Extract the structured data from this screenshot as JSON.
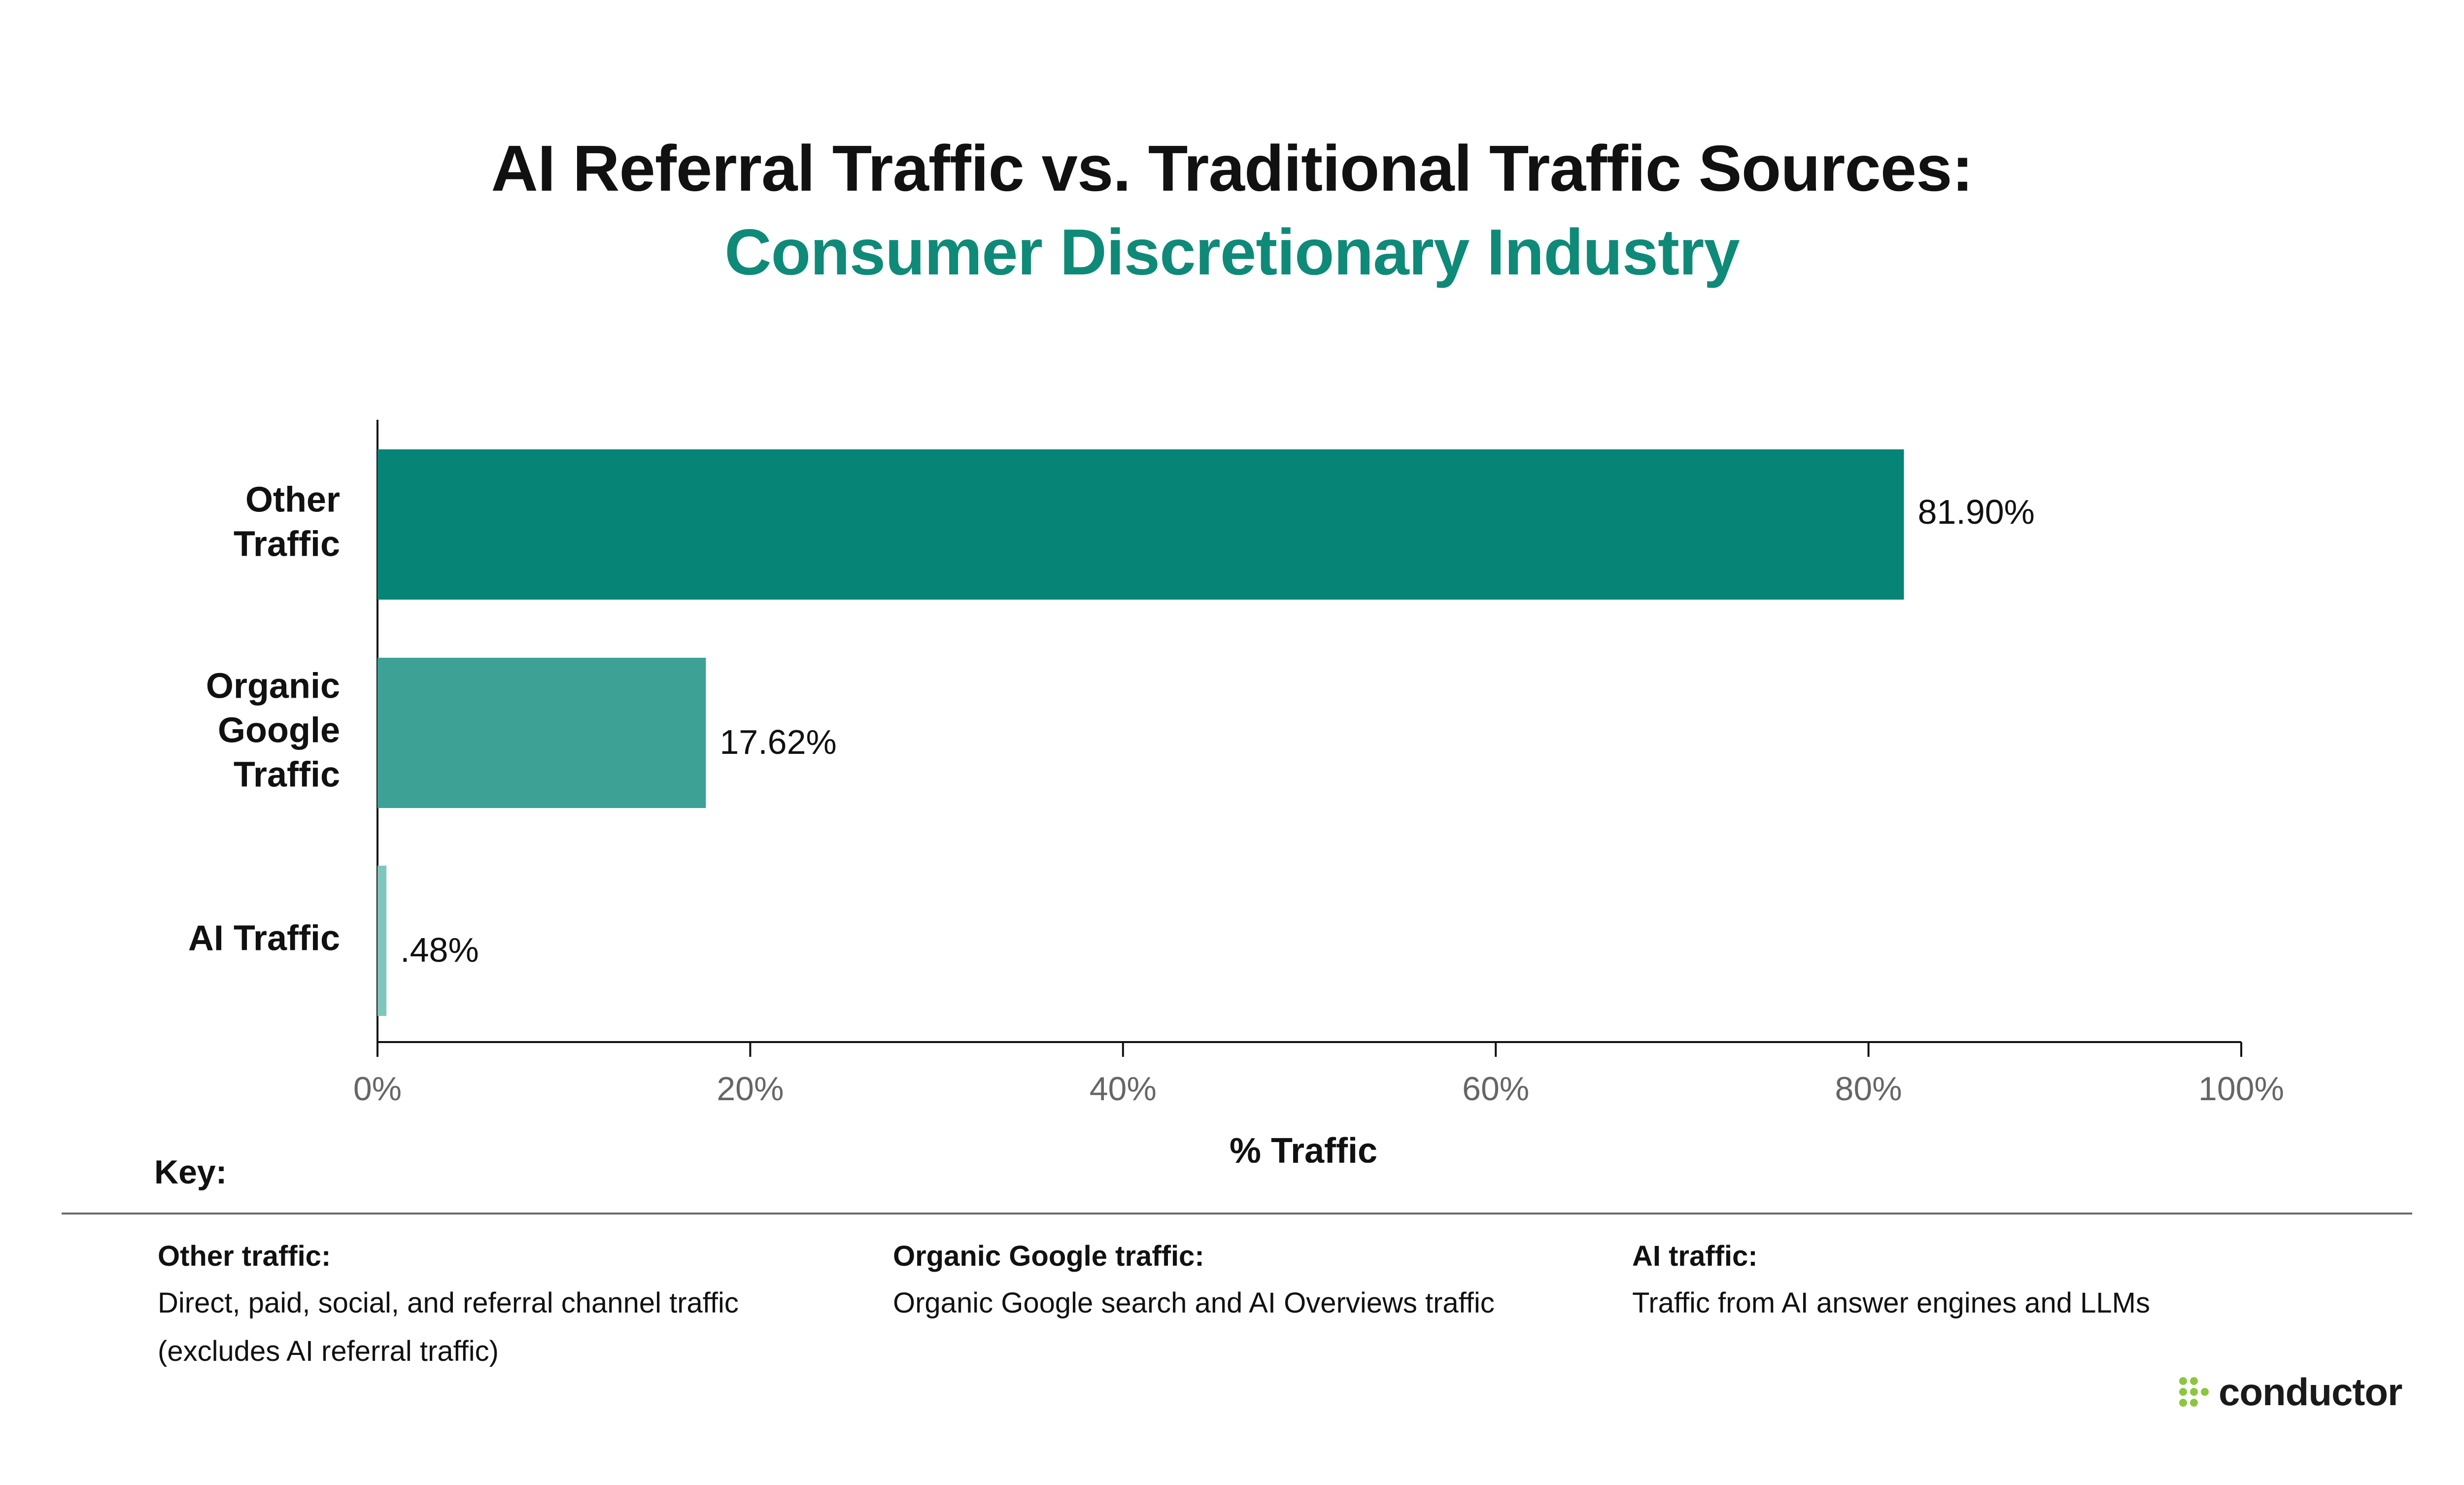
{
  "title": "AI Referral Traffic vs. Traditional Traffic Sources:",
  "subtitle": "Consumer Discretionary Industry",
  "colors": {
    "title": "#111111",
    "subtitle": "#0f8a78",
    "bar_other": "#068576",
    "bar_organic": "#3da295",
    "bar_ai": "#7fc6bc",
    "logo_dots": "#8cc63f"
  },
  "chart_data": {
    "type": "bar",
    "orientation": "horizontal",
    "title": "AI Referral Traffic vs. Traditional Traffic Sources:",
    "subtitle": "Consumer Discretionary Industry",
    "categories": [
      [
        "Other",
        "Traffic"
      ],
      [
        "Organic",
        "Google",
        "Traffic"
      ],
      [
        "AI Traffic"
      ]
    ],
    "values": [
      81.9,
      17.62,
      0.48
    ],
    "value_labels": [
      "81.90%",
      "17.62%",
      ".48%"
    ],
    "bar_colors": [
      "#068576",
      "#3da295",
      "#7fc6bc"
    ],
    "xlabel": "% Traffic",
    "ylabel": "",
    "xlim": [
      0,
      100
    ],
    "x_ticks": [
      0,
      20,
      40,
      60,
      80,
      100
    ],
    "x_tick_labels": [
      "0%",
      "20%",
      "40%",
      "60%",
      "80%",
      "100%"
    ],
    "grid": false,
    "legend": "none"
  },
  "key": {
    "title": "Key:",
    "items": [
      {
        "heading": "Other traffic:",
        "lines": [
          "Direct, paid, social, and referral channel traffic",
          "(excludes AI referral traffic)"
        ]
      },
      {
        "heading": "Organic Google traffic:",
        "lines": [
          "Organic Google search and AI Overviews traffic"
        ]
      },
      {
        "heading": "AI traffic:",
        "lines": [
          "Traffic from AI answer engines and LLMs"
        ]
      }
    ]
  },
  "logo": {
    "text": "conductor",
    "icon": "dots-grid-icon"
  }
}
